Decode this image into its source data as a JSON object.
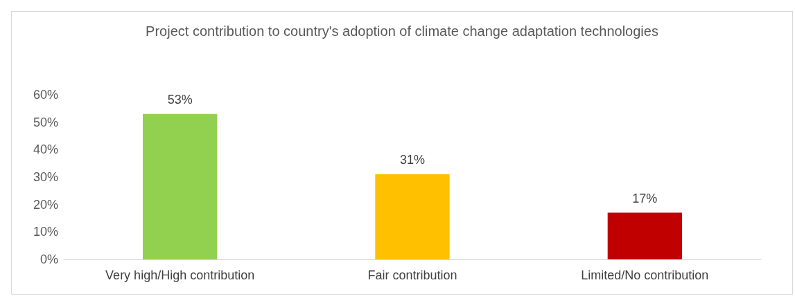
{
  "chart_data": {
    "type": "bar",
    "title": "Project contribution to country's adoption of climate change adaptation technologies",
    "categories": [
      "Very high/High contribution",
      "Fair contribution",
      "Limited/No contribution"
    ],
    "values": [
      53,
      31,
      17
    ],
    "colors": [
      "#92d050",
      "#ffc000",
      "#c00000"
    ],
    "value_labels": [
      "53%",
      "31%",
      "17%"
    ],
    "ylim": [
      0,
      60
    ],
    "yticks": [
      {
        "value": 0,
        "label": "0%"
      },
      {
        "value": 10,
        "label": "10%"
      },
      {
        "value": 20,
        "label": "20%"
      },
      {
        "value": 30,
        "label": "30%"
      },
      {
        "value": 40,
        "label": "40%"
      },
      {
        "value": 50,
        "label": "50%"
      },
      {
        "value": 60,
        "label": "60%"
      }
    ],
    "grid": false
  }
}
